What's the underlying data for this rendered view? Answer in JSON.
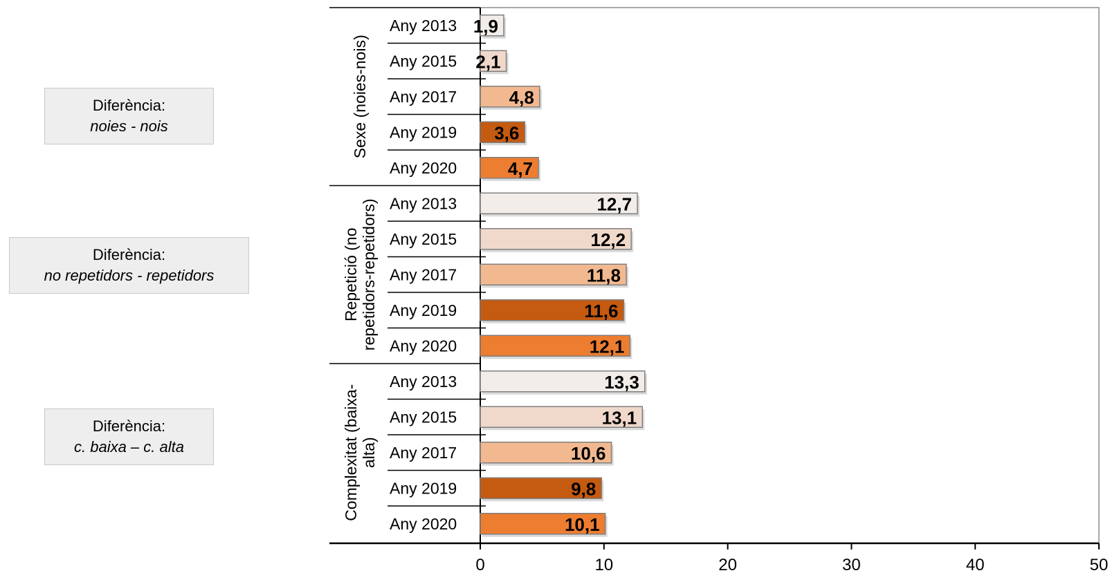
{
  "notes": [
    {
      "line1": "Diferència:",
      "line2": "noies - nois"
    },
    {
      "line1": "Diferència:",
      "line2": "no repetidors - repetidors"
    },
    {
      "line1": "Diferència:",
      "line2": "c. baixa – c. alta"
    }
  ],
  "chart_data": {
    "type": "bar",
    "orientation": "horizontal",
    "title": "",
    "xlabel": "",
    "ylabel": "",
    "xlim": [
      0,
      50
    ],
    "x_ticks": [
      "0",
      "10",
      "20",
      "30",
      "40",
      "50"
    ],
    "grid": false,
    "legend": "none",
    "colors": {
      "Any 2013": "#f2ede9",
      "Any 2015": "#f0d9cb",
      "Any 2017": "#f2b990",
      "Any 2019": "#c55a11",
      "Any 2020": "#ed7d31"
    },
    "groups": [
      {
        "name": "Sexe (noies-nois)",
        "name_lines": [
          "Sexe (noies-nois)"
        ],
        "categories": [
          "Any 2013",
          "Any 2015",
          "Any 2017",
          "Any 2019",
          "Any 2020"
        ],
        "values": [
          1.9,
          2.1,
          4.8,
          3.6,
          4.7
        ],
        "labels": [
          "1,9",
          "2,1",
          "4,8",
          "3,6",
          "4,7"
        ]
      },
      {
        "name": "Repetició (no repetidors-repetidors)",
        "name_lines": [
          "Repetició (no",
          "repetidors-repetidors)"
        ],
        "categories": [
          "Any 2013",
          "Any 2015",
          "Any 2017",
          "Any 2019",
          "Any 2020"
        ],
        "values": [
          12.7,
          12.2,
          11.8,
          11.6,
          12.1
        ],
        "labels": [
          "12,7",
          "12,2",
          "11,8",
          "11,6",
          "12,1"
        ]
      },
      {
        "name": "Complexitat (baixa-alta)",
        "name_lines": [
          "Complexitat (baixa-",
          "alta)"
        ],
        "categories": [
          "Any 2013",
          "Any 2015",
          "Any 2017",
          "Any 2019",
          "Any 2020"
        ],
        "values": [
          13.3,
          13.1,
          10.6,
          9.8,
          10.1
        ],
        "labels": [
          "13,3",
          "13,1",
          "10,6",
          "9,8",
          "10,1"
        ]
      }
    ]
  }
}
